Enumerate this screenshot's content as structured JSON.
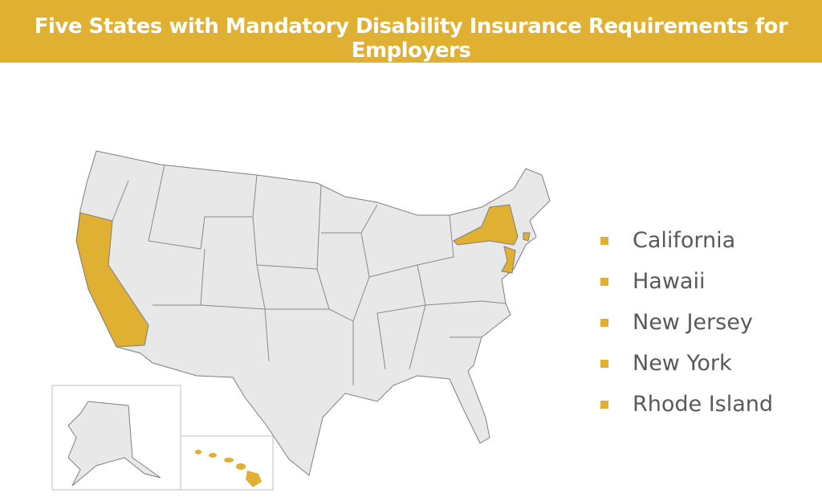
{
  "title": "Five States with Mandatory Disability Insurance Requirements for Employers",
  "colors": {
    "highlight": "#e0b032",
    "state_fill": "#e8e8e8",
    "border": "#7f7f7f"
  },
  "highlighted_states": [
    "California",
    "Hawaii",
    "New Jersey",
    "New York",
    "Rhode Island"
  ],
  "legend": {
    "items": [
      "California",
      "Hawaii",
      "New Jersey",
      "New York",
      "Rhode Island"
    ]
  }
}
